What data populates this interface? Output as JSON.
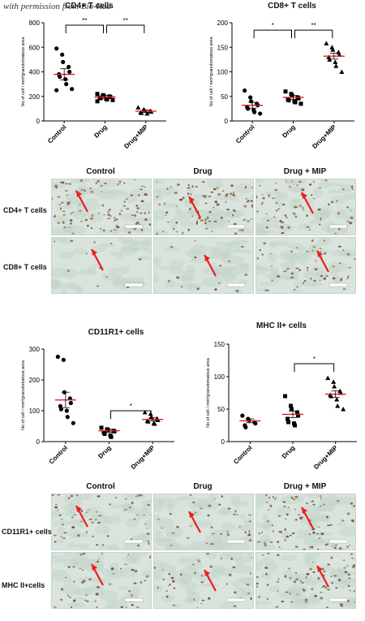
{
  "credit": "with permission from Bio-Rad",
  "colors": {
    "tissue": "#d8e4dc",
    "cell": "#7a4a30",
    "arrow": "#ee1c1c",
    "mean": "#e02020"
  },
  "chart_data": [
    {
      "type": "scatter",
      "title": "CD4+ T cells",
      "ylabel": "No of cell / mm²granulomatous area",
      "categories": [
        "Control",
        "Drug",
        "Drug+MIP"
      ],
      "ylim": [
        0,
        800
      ],
      "yticks": [
        0,
        200,
        400,
        600,
        800
      ],
      "marker_shapes": [
        "circle",
        "square",
        "triangle"
      ],
      "points": [
        [
          590,
          540,
          480,
          440,
          400,
          380,
          360,
          340,
          300,
          260,
          250
        ],
        [
          220,
          210,
          205,
          200,
          195,
          190,
          185,
          180,
          175,
          170,
          160
        ],
        [
          110,
          95,
          85,
          80,
          75,
          70,
          65,
          60
        ]
      ],
      "means": [
        380,
        195,
        80
      ],
      "sems": [
        45,
        12,
        10
      ],
      "brackets": [
        {
          "from": 0,
          "to": 1,
          "y": 780,
          "label": "**"
        },
        {
          "from": 1,
          "to": 2,
          "y": 780,
          "label": "**"
        }
      ]
    },
    {
      "type": "scatter",
      "title": "CD8+ T cells",
      "ylabel": "No of cell / mm²granulomatous area",
      "categories": [
        "Control",
        "Drug",
        "Drug+MIP"
      ],
      "ylim": [
        0,
        200
      ],
      "yticks": [
        0,
        50,
        100,
        150,
        200
      ],
      "marker_shapes": [
        "circle",
        "square",
        "triangle"
      ],
      "points": [
        [
          62,
          48,
          40,
          35,
          32,
          28,
          25,
          22,
          18,
          15
        ],
        [
          60,
          55,
          52,
          48,
          46,
          44,
          42,
          40,
          38,
          35
        ],
        [
          158,
          150,
          145,
          140,
          135,
          130,
          125,
          120,
          112,
          100
        ]
      ],
      "means": [
        32,
        48,
        132
      ],
      "sems": [
        6,
        4,
        6
      ],
      "brackets": [
        {
          "from": 0,
          "to": 1,
          "y": 185,
          "label": "*"
        },
        {
          "from": 1,
          "to": 2,
          "y": 185,
          "label": "**"
        }
      ]
    },
    {
      "type": "scatter",
      "title": "CD11R1+ cells",
      "ylabel": "No of cell / mm²granulomatous area",
      "categories": [
        "Control",
        "Drug",
        "Drug+MIP"
      ],
      "ylim": [
        0,
        300
      ],
      "yticks": [
        0,
        100,
        200,
        300
      ],
      "marker_shapes": [
        "circle",
        "square",
        "triangle"
      ],
      "points": [
        [
          275,
          265,
          160,
          140,
          125,
          115,
          105,
          100,
          80,
          60
        ],
        [
          45,
          40,
          38,
          35,
          33,
          30,
          25,
          20,
          15
        ],
        [
          95,
          90,
          80,
          75,
          70,
          68,
          65,
          60,
          58
        ]
      ],
      "means": [
        135,
        35,
        72
      ],
      "sems": [
        25,
        5,
        5
      ],
      "brackets": [
        {
          "from": 1,
          "to": 2,
          "y": 100,
          "label": "*"
        }
      ]
    },
    {
      "type": "scatter",
      "title": "MHC II+ cells",
      "ylabel": "No of cell / mm²granulomatous area",
      "categories": [
        "Control",
        "Drug",
        "Drug+MIP"
      ],
      "ylim": [
        0,
        150
      ],
      "yticks": [
        0,
        50,
        100,
        150
      ],
      "marker_shapes": [
        "circle",
        "square",
        "triangle"
      ],
      "points": [
        [
          40,
          35,
          33,
          30,
          28,
          25,
          22
        ],
        [
          70,
          55,
          50,
          45,
          40,
          35,
          30,
          28,
          25
        ],
        [
          98,
          92,
          85,
          78,
          75,
          72,
          70,
          65,
          55,
          50
        ]
      ],
      "means": [
        32,
        42,
        73
      ],
      "sems": [
        3,
        5,
        5
      ],
      "brackets": [
        {
          "from": 1,
          "to": 2,
          "y": 120,
          "label": "*"
        }
      ]
    }
  ],
  "micrographs": [
    {
      "column_labels": [
        "Control",
        "Drug",
        "Drug + MIP"
      ],
      "row_labels": [
        "CD4+ T cells",
        "CD8+ T cells"
      ],
      "cell_density": [
        [
          0.75,
          0.65,
          0.5
        ],
        [
          0.08,
          0.1,
          0.4
        ]
      ]
    },
    {
      "column_labels": [
        "Control",
        "Drug",
        "Drug + MIP"
      ],
      "row_labels": [
        "CD11R1+ cells",
        "MHC II+cells"
      ],
      "cell_density": [
        [
          0.45,
          0.25,
          0.6
        ],
        [
          0.35,
          0.3,
          0.55
        ]
      ]
    }
  ]
}
